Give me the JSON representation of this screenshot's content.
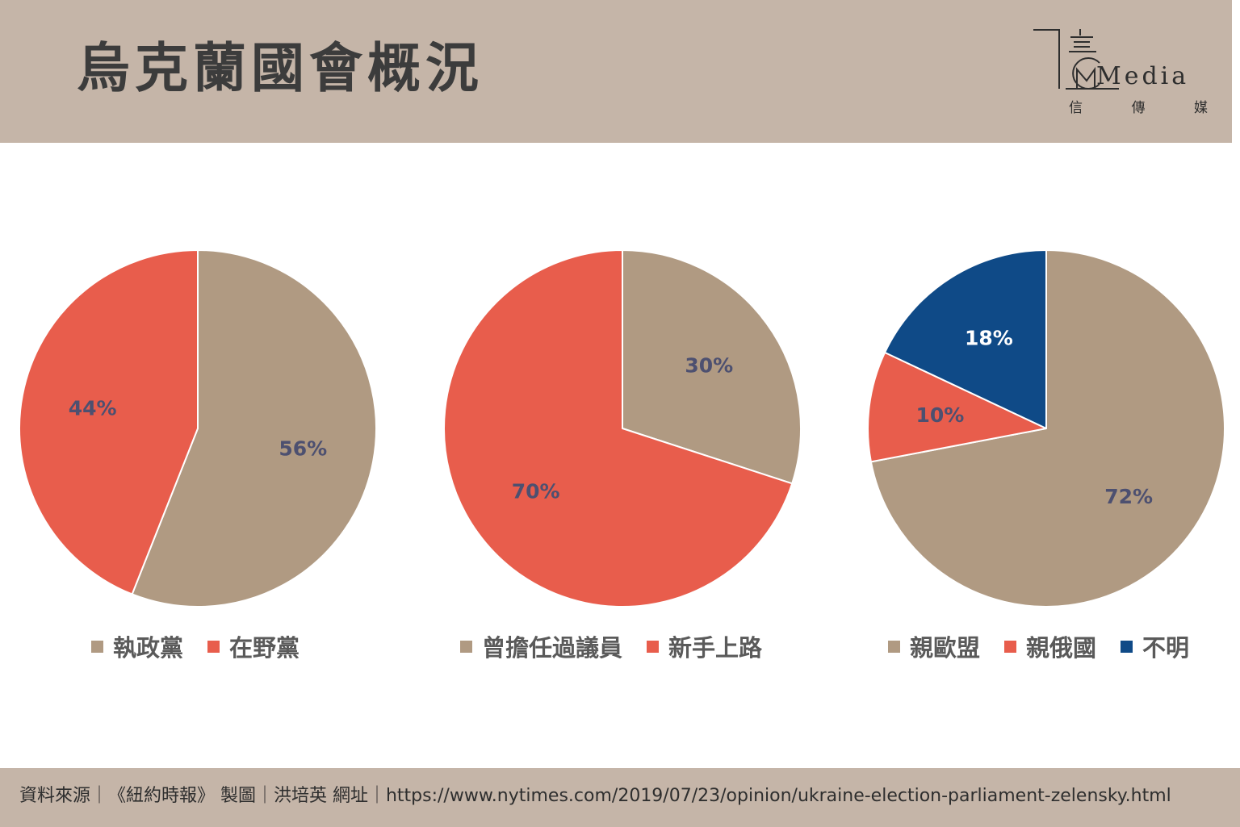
{
  "header": {
    "title": "烏克蘭國會概況",
    "logo": {
      "text": "Media",
      "subtitle": [
        "信",
        "傳",
        "媒"
      ]
    }
  },
  "colors": {
    "header_bg": "#c5b5a8",
    "tan": "#b09a82",
    "coral": "#e85d4c",
    "navy": "#0f4a87",
    "label_dark": "#4d5070",
    "label_light": "#ffffff"
  },
  "chart_data": [
    {
      "type": "pie",
      "slices": [
        {
          "label": "執政黨",
          "value": 56,
          "display": "56%",
          "color": "#b09a82"
        },
        {
          "label": "在野黨",
          "value": 44,
          "display": "44%",
          "color": "#e85d4c"
        }
      ],
      "legend_position": "bottom"
    },
    {
      "type": "pie",
      "slices": [
        {
          "label": "曾擔任過議員",
          "value": 30,
          "display": "30%",
          "color": "#b09a82"
        },
        {
          "label": "新手上路",
          "value": 70,
          "display": "70%",
          "color": "#e85d4c"
        }
      ],
      "legend_position": "bottom"
    },
    {
      "type": "pie",
      "slices": [
        {
          "label": "親歐盟",
          "value": 72,
          "display": "72%",
          "color": "#b09a82"
        },
        {
          "label": "親俄國",
          "value": 10,
          "display": "10%",
          "color": "#e85d4c"
        },
        {
          "label": "不明",
          "value": 18,
          "display": "18%",
          "color": "#0f4a87"
        }
      ],
      "legend_position": "bottom"
    }
  ],
  "footer": {
    "source_text": "資料來源｜《紐約時報》 製圖｜洪培英 網址｜https://www.nytimes.com/2019/07/23/opinion/ukraine-election-parliament-zelensky.html"
  }
}
